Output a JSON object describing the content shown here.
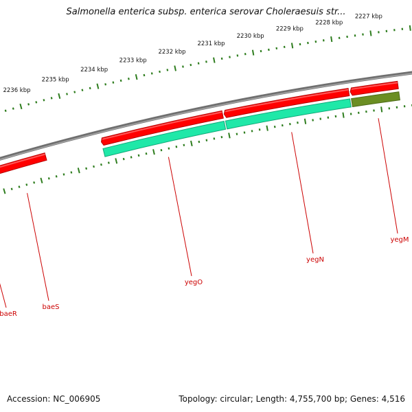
{
  "title": "Salmonella enterica subsp. enterica serovar Choleraesuis str...",
  "footer": {
    "accession": "Accession: NC_006905",
    "topology": "Topology: circular; Length: 4,755,700 bp; Genes: 4,516"
  },
  "colors": {
    "backbone": "#8a8a8a",
    "gene_forward": "#ff0000",
    "gene_cds": "#1fe8a8",
    "gene_cds_dark": "#6b8e23",
    "gene_other_green": "#22bb22",
    "gene_other_orange": "#ff9900",
    "ticks": "#2e7d1e",
    "gene_label": "#cc0000"
  },
  "tick_labels": [
    "2236 kbp",
    "2235 kbp",
    "2234 kbp",
    "2233 kbp",
    "2232 kbp",
    "2231 kbp",
    "2230 kbp",
    "2229 kbp",
    "2228 kbp",
    "2227 kbp"
  ],
  "gene_labels": [
    "baeR",
    "baeS",
    "yegO",
    "yegN",
    "yegM"
  ]
}
